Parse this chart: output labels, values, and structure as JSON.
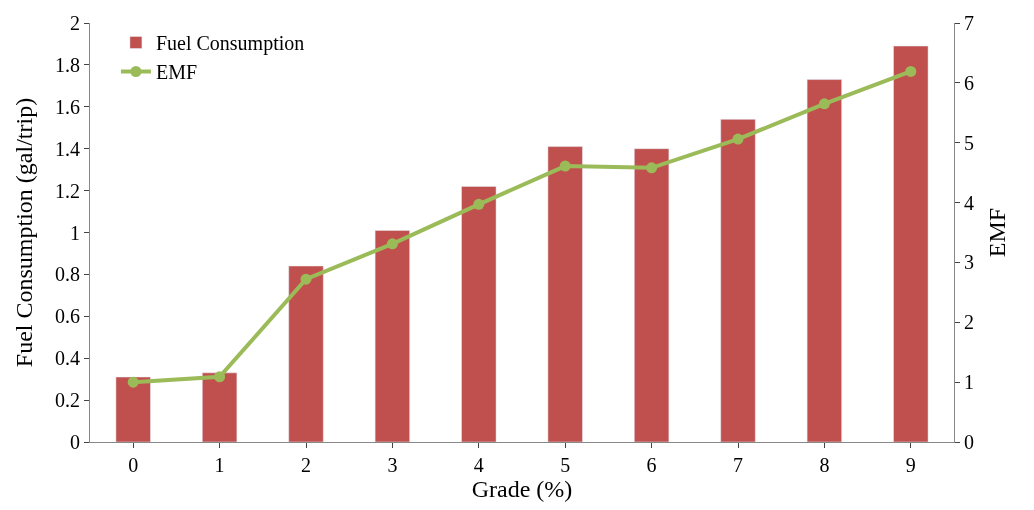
{
  "chart_data": {
    "type": "bar",
    "xlabel": "Grade (%)",
    "ylabel": "Fuel Consumption (gal/trip)",
    "y2label": "EMF",
    "categories": [
      "0",
      "1",
      "2",
      "3",
      "4",
      "5",
      "6",
      "7",
      "8",
      "9"
    ],
    "series": [
      {
        "name": "Fuel Consumption",
        "color": "#c0504d",
        "values": [
          0.31,
          0.33,
          0.84,
          1.01,
          1.22,
          1.41,
          1.4,
          1.54,
          1.73,
          1.89
        ]
      },
      {
        "name": "EMF",
        "type": "line",
        "axis": "y2",
        "color": "#9bbb59",
        "marker": "circle",
        "values": [
          1.0,
          1.09,
          2.72,
          3.31,
          3.97,
          4.61,
          4.58,
          5.06,
          5.65,
          6.19
        ]
      }
    ],
    "ylim": [
      0,
      2
    ],
    "yticks": [
      0,
      0.2,
      0.4,
      0.6,
      0.8,
      1,
      1.2,
      1.4,
      1.6,
      1.8,
      2
    ],
    "y2lim": [
      0,
      7
    ],
    "y2ticks": [
      0,
      1,
      2,
      3,
      4,
      5,
      6,
      7
    ],
    "legend": "top left"
  }
}
